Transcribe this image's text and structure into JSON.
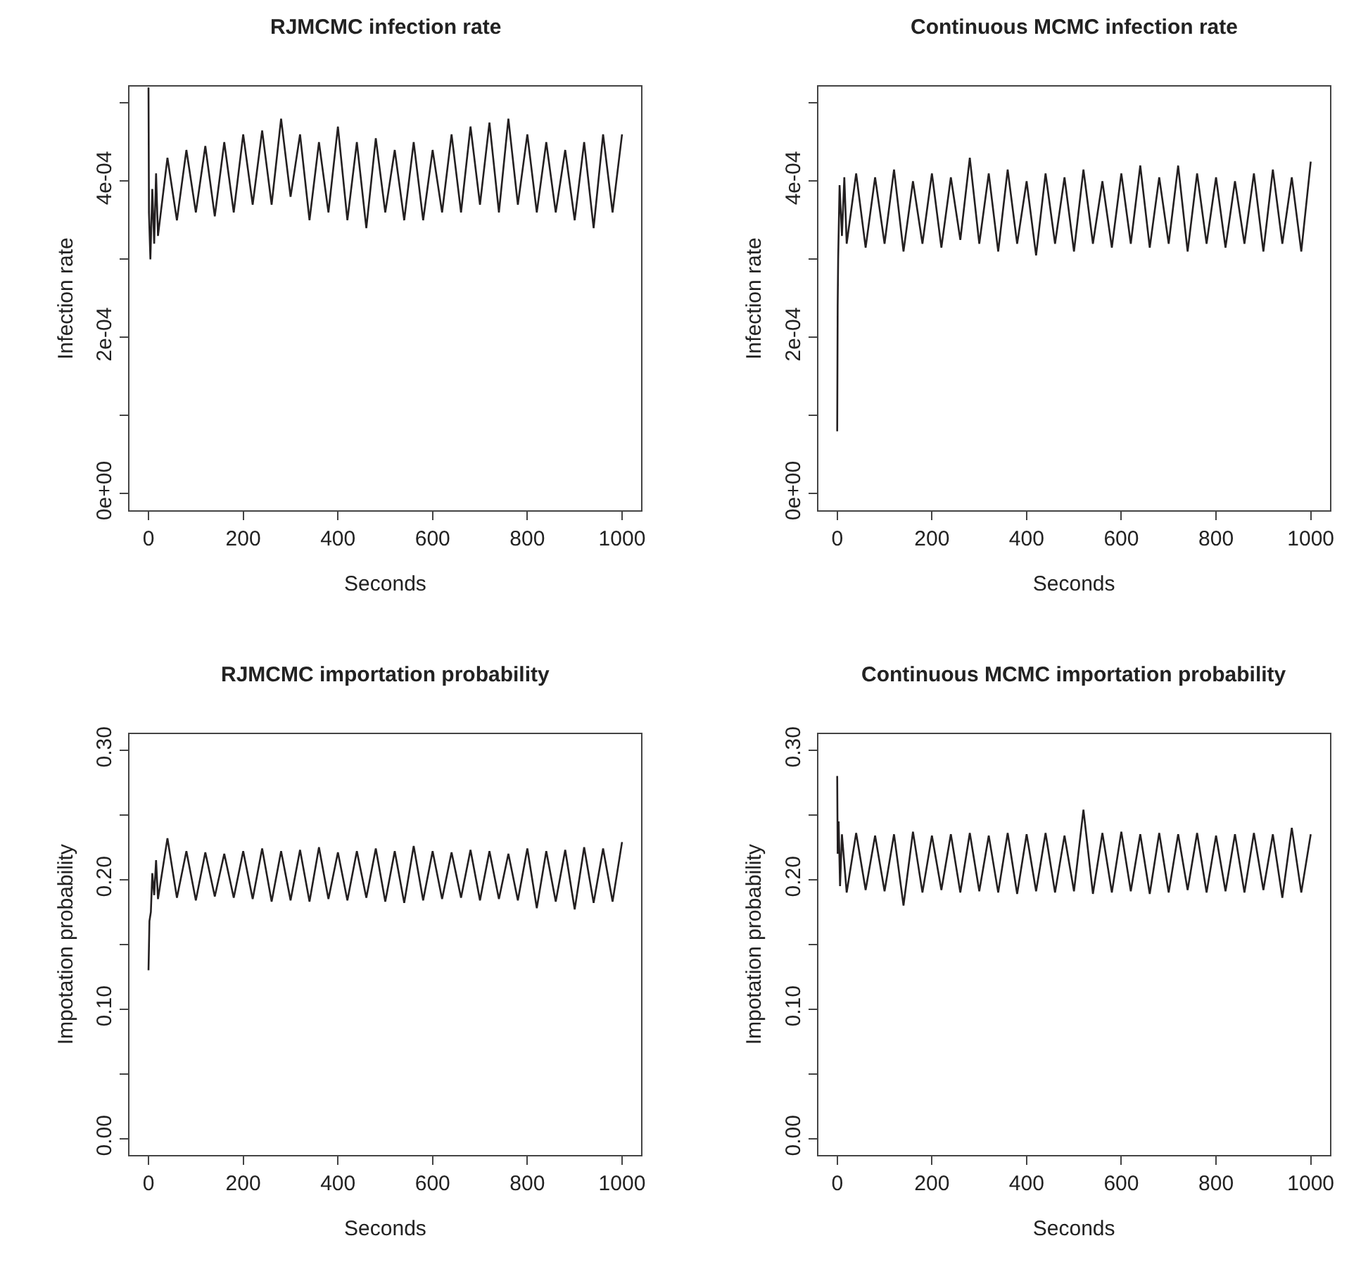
{
  "chart_data": [
    {
      "type": "line",
      "title": "RJMCMC infection rate",
      "xlabel": "Seconds",
      "ylabel": "Infection rate",
      "xlim": [
        -40,
        1040
      ],
      "ylim": [
        -2.1e-05,
        0.000521
      ],
      "xticks": [
        0,
        200,
        400,
        600,
        800,
        1000
      ],
      "yticks": [
        {
          "value": 0,
          "label": "0e+00"
        },
        {
          "value": 0.0001,
          "label": null
        },
        {
          "value": 0.0002,
          "label": "2e-04"
        },
        {
          "value": 0.0003,
          "label": null
        },
        {
          "value": 0.0004,
          "label": "4e-04"
        },
        {
          "value": 0.0005,
          "label": null
        }
      ],
      "grid": false,
      "series": [
        {
          "color": "#231f20",
          "x": [
            0,
            1,
            4,
            8,
            12,
            16,
            20,
            40,
            60,
            80,
            100,
            120,
            140,
            160,
            180,
            200,
            220,
            240,
            260,
            280,
            300,
            320,
            340,
            360,
            380,
            400,
            420,
            440,
            460,
            480,
            500,
            520,
            540,
            560,
            580,
            600,
            620,
            640,
            660,
            680,
            700,
            720,
            740,
            760,
            780,
            800,
            820,
            840,
            860,
            880,
            900,
            920,
            940,
            960,
            980,
            1000
          ],
          "values": [
            0.00052,
            0.00036,
            0.0003,
            0.00039,
            0.00032,
            0.00041,
            0.00033,
            0.00043,
            0.00035,
            0.00044,
            0.00036,
            0.000445,
            0.000355,
            0.00045,
            0.00036,
            0.00046,
            0.00037,
            0.000465,
            0.00037,
            0.00048,
            0.00038,
            0.00046,
            0.00035,
            0.00045,
            0.00036,
            0.00047,
            0.00035,
            0.00045,
            0.00034,
            0.000455,
            0.00036,
            0.00044,
            0.00035,
            0.00045,
            0.00035,
            0.00044,
            0.00036,
            0.00046,
            0.00036,
            0.00047,
            0.00037,
            0.000475,
            0.00036,
            0.00048,
            0.00037,
            0.00046,
            0.00036,
            0.00045,
            0.00036,
            0.00044,
            0.00035,
            0.00045,
            0.00034,
            0.00046,
            0.00036,
            0.00046
          ]
        }
      ]
    },
    {
      "type": "line",
      "title": "Continuous MCMC infection rate",
      "xlabel": "Seconds",
      "ylabel": "Infection rate",
      "xlim": [
        -40,
        1040
      ],
      "ylim": [
        -2.1e-05,
        0.000521
      ],
      "xticks": [
        0,
        200,
        400,
        600,
        800,
        1000
      ],
      "yticks": [
        {
          "value": 0,
          "label": "0e+00"
        },
        {
          "value": 0.0001,
          "label": null
        },
        {
          "value": 0.0002,
          "label": "2e-04"
        },
        {
          "value": 0.0003,
          "label": null
        },
        {
          "value": 0.0004,
          "label": "4e-04"
        },
        {
          "value": 0.0005,
          "label": null
        }
      ],
      "grid": false,
      "series": [
        {
          "color": "#231f20",
          "x": [
            0,
            1,
            2,
            5,
            10,
            15,
            20,
            40,
            60,
            80,
            100,
            120,
            140,
            160,
            180,
            200,
            220,
            240,
            260,
            280,
            300,
            320,
            340,
            360,
            380,
            400,
            420,
            440,
            460,
            480,
            500,
            520,
            540,
            560,
            580,
            600,
            620,
            640,
            660,
            680,
            700,
            720,
            740,
            760,
            780,
            800,
            820,
            840,
            860,
            880,
            900,
            920,
            940,
            960,
            980,
            1000
          ],
          "values": [
            8e-05,
            0.00024,
            0.0003,
            0.000395,
            0.00033,
            0.000405,
            0.00032,
            0.00041,
            0.000315,
            0.000405,
            0.00032,
            0.000415,
            0.00031,
            0.0004,
            0.00032,
            0.00041,
            0.000315,
            0.000405,
            0.000325,
            0.00043,
            0.00032,
            0.00041,
            0.00031,
            0.000415,
            0.00032,
            0.0004,
            0.000305,
            0.00041,
            0.00032,
            0.000405,
            0.00031,
            0.000415,
            0.00032,
            0.0004,
            0.000315,
            0.00041,
            0.00032,
            0.00042,
            0.000315,
            0.000405,
            0.00032,
            0.00042,
            0.00031,
            0.00041,
            0.00032,
            0.000405,
            0.000315,
            0.0004,
            0.00032,
            0.00041,
            0.00031,
            0.000415,
            0.00032,
            0.000405,
            0.00031,
            0.000425
          ]
        }
      ]
    },
    {
      "type": "line",
      "title": "RJMCMC importation probability",
      "xlabel": "Seconds",
      "ylabel": "Impotation probability",
      "xlim": [
        -40,
        1040
      ],
      "ylim": [
        -0.0125,
        0.3125
      ],
      "xticks": [
        0,
        200,
        400,
        600,
        800,
        1000
      ],
      "yticks": [
        {
          "value": 0,
          "label": "0.00"
        },
        {
          "value": 0.05,
          "label": null
        },
        {
          "value": 0.1,
          "label": "0.10"
        },
        {
          "value": 0.15,
          "label": null
        },
        {
          "value": 0.2,
          "label": "0.20"
        },
        {
          "value": 0.25,
          "label": null
        },
        {
          "value": 0.3,
          "label": "0.30"
        }
      ],
      "grid": false,
      "series": [
        {
          "color": "#231f20",
          "x": [
            0,
            2,
            5,
            8,
            12,
            16,
            20,
            40,
            60,
            80,
            100,
            120,
            140,
            160,
            180,
            200,
            220,
            240,
            260,
            280,
            300,
            320,
            340,
            360,
            380,
            400,
            420,
            440,
            460,
            480,
            500,
            520,
            540,
            560,
            580,
            600,
            620,
            640,
            660,
            680,
            700,
            720,
            740,
            760,
            780,
            800,
            820,
            840,
            860,
            880,
            900,
            920,
            940,
            960,
            980,
            1000
          ],
          "values": [
            0.13,
            0.168,
            0.175,
            0.205,
            0.188,
            0.215,
            0.185,
            0.232,
            0.186,
            0.222,
            0.184,
            0.221,
            0.187,
            0.22,
            0.186,
            0.222,
            0.185,
            0.224,
            0.183,
            0.222,
            0.184,
            0.223,
            0.183,
            0.225,
            0.185,
            0.221,
            0.184,
            0.222,
            0.186,
            0.224,
            0.183,
            0.222,
            0.182,
            0.226,
            0.184,
            0.222,
            0.185,
            0.221,
            0.186,
            0.223,
            0.184,
            0.222,
            0.185,
            0.22,
            0.184,
            0.224,
            0.178,
            0.222,
            0.183,
            0.223,
            0.177,
            0.225,
            0.182,
            0.224,
            0.183,
            0.229
          ]
        }
      ]
    },
    {
      "type": "line",
      "title": "Continuous MCMC importation probability",
      "xlabel": "Seconds",
      "ylabel": "Impotation probability",
      "xlim": [
        -40,
        1040
      ],
      "ylim": [
        -0.0125,
        0.3125
      ],
      "xticks": [
        0,
        200,
        400,
        600,
        800,
        1000
      ],
      "yticks": [
        {
          "value": 0,
          "label": "0.00"
        },
        {
          "value": 0.05,
          "label": null
        },
        {
          "value": 0.1,
          "label": "0.10"
        },
        {
          "value": 0.15,
          "label": null
        },
        {
          "value": 0.2,
          "label": "0.20"
        },
        {
          "value": 0.25,
          "label": null
        },
        {
          "value": 0.3,
          "label": "0.30"
        }
      ],
      "grid": false,
      "series": [
        {
          "color": "#231f20",
          "x": [
            0,
            1,
            3,
            6,
            10,
            20,
            40,
            60,
            80,
            100,
            120,
            140,
            160,
            180,
            200,
            220,
            240,
            260,
            280,
            300,
            320,
            340,
            360,
            380,
            400,
            420,
            440,
            460,
            480,
            500,
            520,
            540,
            560,
            580,
            600,
            620,
            640,
            660,
            680,
            700,
            720,
            740,
            760,
            780,
            800,
            820,
            840,
            860,
            880,
            900,
            920,
            940,
            960,
            980,
            1000
          ],
          "values": [
            0.28,
            0.22,
            0.245,
            0.195,
            0.235,
            0.19,
            0.236,
            0.192,
            0.234,
            0.191,
            0.235,
            0.18,
            0.237,
            0.19,
            0.234,
            0.192,
            0.235,
            0.19,
            0.236,
            0.191,
            0.234,
            0.19,
            0.236,
            0.189,
            0.235,
            0.191,
            0.236,
            0.19,
            0.234,
            0.191,
            0.254,
            0.189,
            0.236,
            0.19,
            0.237,
            0.191,
            0.235,
            0.189,
            0.236,
            0.19,
            0.235,
            0.192,
            0.236,
            0.19,
            0.234,
            0.191,
            0.235,
            0.19,
            0.236,
            0.192,
            0.235,
            0.186,
            0.24,
            0.19,
            0.235
          ]
        }
      ]
    }
  ]
}
